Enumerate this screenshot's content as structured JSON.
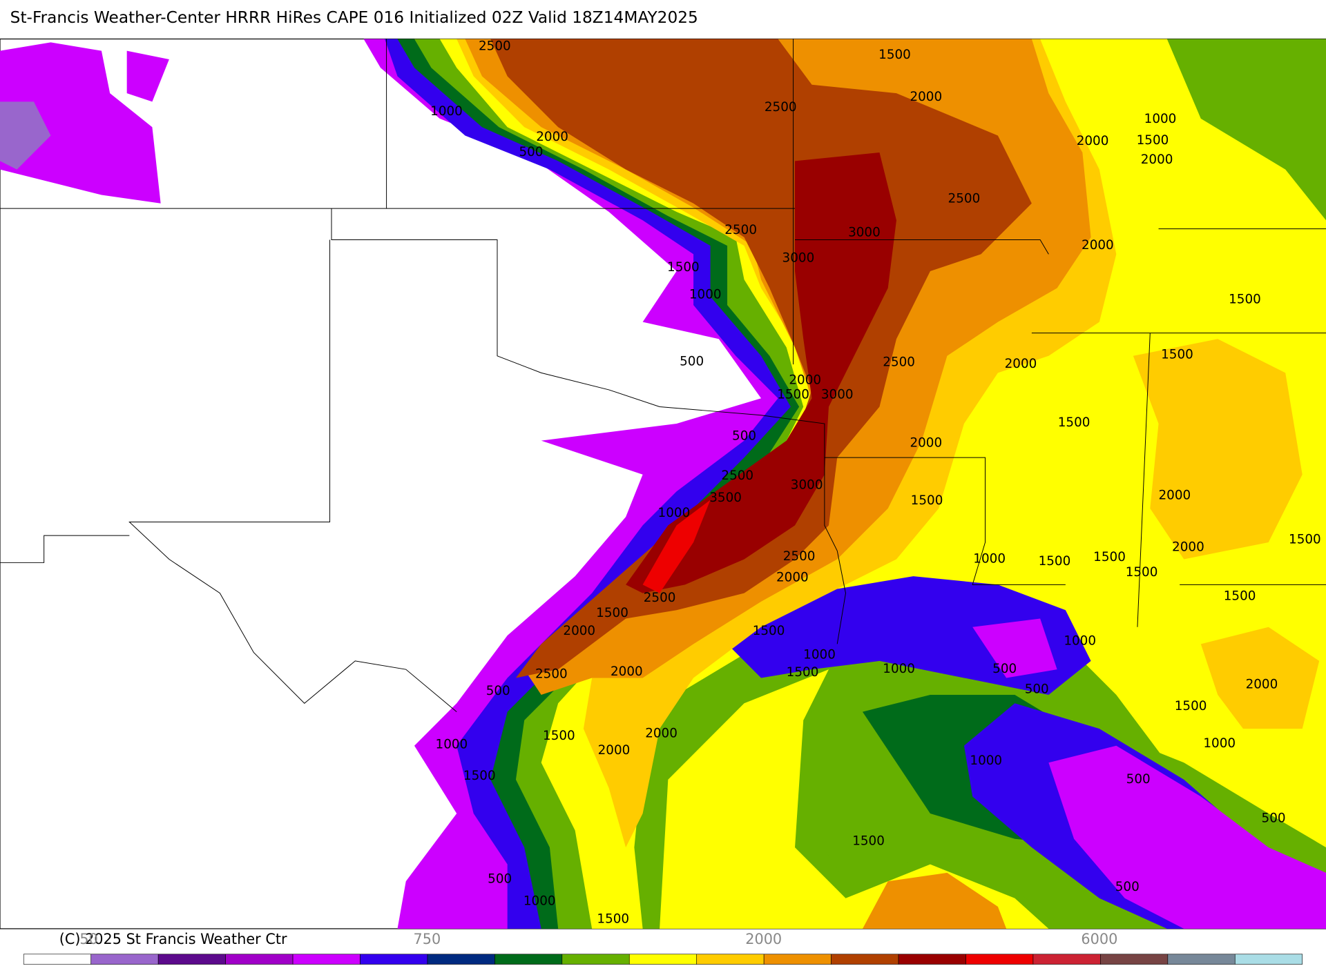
{
  "header": {
    "title": "St-Francis Weather-Center HRRR HiRes CAPE  016 Initialized  02Z Valid 18Z14MAY2025"
  },
  "contour_labels": [
    "2500",
    "1500",
    "1000",
    "2500",
    "2000",
    "2000",
    "500",
    "1000",
    "1500",
    "2000",
    "2000",
    "2500",
    "2500",
    "3000",
    "3000",
    "2000",
    "1500",
    "1000",
    "1500",
    "500",
    "2500",
    "2000",
    "1500",
    "2000",
    "1500",
    "3000",
    "1500",
    "500",
    "2000",
    "2500",
    "3000",
    "3500",
    "2000",
    "1500",
    "1000",
    "1500",
    "2000",
    "2500",
    "1000",
    "1500",
    "1500",
    "1500",
    "2000",
    "2500",
    "1500",
    "1500",
    "2000",
    "1500",
    "1000",
    "1000",
    "1000",
    "1500",
    "500",
    "2500",
    "2000",
    "500",
    "500",
    "2000",
    "1500",
    "1000",
    "1500",
    "2000",
    "2000",
    "1000",
    "1000",
    "1500",
    "500",
    "500",
    "1500",
    "500",
    "1000",
    "500",
    "1500"
  ],
  "footer": {
    "copyright": "(C) 2025 St Francis Weather Ctr"
  },
  "colorbar": {
    "colors": [
      "#ffffff",
      "#9966cc",
      "#5c0a8c",
      "#a000c8",
      "#cc00ff",
      "#3300ee",
      "#002a80",
      "#006b1a",
      "#66b000",
      "#ffff00",
      "#ffcc00",
      "#ee9000",
      "#b04000",
      "#990000",
      "#ee0000",
      "#cc2233",
      "#774444",
      "#778899",
      "#aadde6"
    ],
    "labels": [
      "50",
      "750",
      "2000",
      "6000"
    ]
  }
}
